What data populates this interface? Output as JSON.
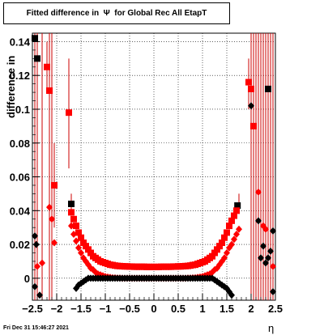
{
  "title": "Fitted difference in  Ψ  for Global Rec All EtapT",
  "footer": "Fri Dec 31 15:46:27 2021",
  "chart_data": {
    "type": "scatter",
    "title": "Fitted difference in  Ψ  for Global Rec All EtapT",
    "xlabel": "η",
    "ylabel": "difference in",
    "xlim": [
      -2.5,
      2.5
    ],
    "ylim": [
      -0.013,
      0.145
    ],
    "grid": true,
    "x_ticks": [
      -2.5,
      -2,
      -1.5,
      -1,
      -0.5,
      0,
      0.5,
      1,
      1.5,
      2,
      2.5
    ],
    "x_tick_labels": [
      "−2.5",
      "−2",
      "−1.5",
      "−1",
      "−0.5",
      "0",
      "0.5",
      "1",
      "1.5",
      "2",
      "2.5"
    ],
    "y_ticks": [
      0,
      0.02,
      0.04,
      0.06,
      0.08,
      0.1,
      0.12,
      0.14
    ],
    "y_tick_labels": [
      "0",
      "0.02",
      "0.04",
      "0.06",
      "0.08",
      "0.1",
      "0.12",
      "0.14"
    ],
    "colors": {
      "red": "#ff0000",
      "black": "#000000",
      "error_bar": "#cc0000"
    },
    "series": [
      {
        "marker": "square",
        "color": "#000000",
        "points": [
          [
            -2.45,
            0.142
          ],
          [
            -2.4,
            0.13
          ],
          [
            -1.7,
            0.044
          ],
          [
            1.72,
            0.043
          ],
          [
            2.35,
            0.112
          ]
        ]
      },
      {
        "marker": "square",
        "color": "#ff0000",
        "points": [
          [
            -2.2,
            0.125
          ],
          [
            -2.15,
            0.111
          ],
          [
            -2.05,
            0.055
          ],
          [
            -1.75,
            0.098
          ],
          [
            -1.7,
            0.039
          ],
          [
            -1.65,
            0.035
          ],
          [
            -1.6,
            0.031
          ],
          [
            -1.55,
            0.027
          ],
          [
            -1.5,
            0.024
          ],
          [
            -1.45,
            0.021
          ],
          [
            -1.4,
            0.019
          ],
          [
            -1.35,
            0.017
          ],
          [
            -1.3,
            0.015
          ],
          [
            -1.25,
            0.013
          ],
          [
            -1.2,
            0.012
          ],
          [
            -1.15,
            0.011
          ],
          [
            -1.1,
            0.01
          ],
          [
            -1.05,
            0.0095
          ],
          [
            -1.0,
            0.009
          ],
          [
            -0.95,
            0.0085
          ],
          [
            -0.9,
            0.008
          ],
          [
            -0.85,
            0.0078
          ],
          [
            -0.8,
            0.0075
          ],
          [
            -0.75,
            0.0073
          ],
          [
            -0.7,
            0.0072
          ],
          [
            -0.65,
            0.0071
          ],
          [
            -0.6,
            0.007
          ],
          [
            -0.55,
            0.007
          ],
          [
            -0.5,
            0.0069
          ],
          [
            -0.45,
            0.0069
          ],
          [
            -0.4,
            0.0068
          ],
          [
            -0.35,
            0.0068
          ],
          [
            -0.3,
            0.0068
          ],
          [
            -0.25,
            0.0068
          ],
          [
            -0.2,
            0.0068
          ],
          [
            -0.15,
            0.0067
          ],
          [
            -0.1,
            0.0067
          ],
          [
            -0.05,
            0.0067
          ],
          [
            0.0,
            0.0067
          ],
          [
            0.05,
            0.0067
          ],
          [
            0.1,
            0.0067
          ],
          [
            0.15,
            0.0068
          ],
          [
            0.2,
            0.0068
          ],
          [
            0.25,
            0.0068
          ],
          [
            0.3,
            0.0068
          ],
          [
            0.35,
            0.0068
          ],
          [
            0.4,
            0.0069
          ],
          [
            0.45,
            0.0069
          ],
          [
            0.5,
            0.007
          ],
          [
            0.55,
            0.007
          ],
          [
            0.6,
            0.0071
          ],
          [
            0.65,
            0.0072
          ],
          [
            0.7,
            0.0073
          ],
          [
            0.75,
            0.0075
          ],
          [
            0.8,
            0.0078
          ],
          [
            0.85,
            0.008
          ],
          [
            0.9,
            0.0085
          ],
          [
            0.95,
            0.009
          ],
          [
            1.0,
            0.0095
          ],
          [
            1.05,
            0.01
          ],
          [
            1.1,
            0.011
          ],
          [
            1.15,
            0.012
          ],
          [
            1.2,
            0.013
          ],
          [
            1.25,
            0.015
          ],
          [
            1.3,
            0.017
          ],
          [
            1.35,
            0.019
          ],
          [
            1.4,
            0.021
          ],
          [
            1.45,
            0.024
          ],
          [
            1.5,
            0.027
          ],
          [
            1.55,
            0.031
          ],
          [
            1.6,
            0.034
          ],
          [
            1.65,
            0.037
          ],
          [
            1.7,
            0.04
          ],
          [
            1.95,
            0.116
          ],
          [
            2.0,
            0.112
          ],
          [
            2.05,
            0.09
          ]
        ]
      },
      {
        "marker": "diamond",
        "color": "#ff0000",
        "points": [
          [
            -2.4,
            0.007
          ],
          [
            -2.3,
            0.009
          ],
          [
            -2.15,
            0.042
          ],
          [
            -2.1,
            0.035
          ],
          [
            -2.05,
            0.021
          ],
          [
            -1.7,
            0.031
          ],
          [
            -1.65,
            0.026
          ],
          [
            -1.6,
            0.022
          ],
          [
            -1.55,
            0.018
          ],
          [
            -1.5,
            0.015
          ],
          [
            -1.45,
            0.012
          ],
          [
            -1.4,
            0.01
          ],
          [
            -1.35,
            0.008
          ],
          [
            -1.3,
            0.006
          ],
          [
            -1.25,
            0.005
          ],
          [
            -1.2,
            0.0035
          ],
          [
            -1.15,
            0.0025
          ],
          [
            -1.1,
            0.002
          ],
          [
            -1.05,
            0.0015
          ],
          [
            -1.0,
            0.001
          ],
          [
            -0.95,
            0.0007
          ],
          [
            -0.9,
            0.0005
          ],
          [
            -0.85,
            0.0003
          ],
          [
            -0.8,
            0.0002
          ],
          [
            -0.75,
            0.0001
          ],
          [
            -0.7,
            0.0001
          ],
          [
            -0.65,
            0.0
          ],
          [
            -0.6,
            0.0
          ],
          [
            -0.55,
            0.0
          ],
          [
            -0.5,
            0.0
          ],
          [
            -0.45,
            0.0
          ],
          [
            -0.4,
            0.0
          ],
          [
            -0.35,
            0.0
          ],
          [
            -0.3,
            0.0
          ],
          [
            -0.25,
            0.0
          ],
          [
            -0.2,
            0.0
          ],
          [
            -0.15,
            0.0
          ],
          [
            -0.1,
            0.0
          ],
          [
            -0.05,
            0.0
          ],
          [
            0.0,
            0.0
          ],
          [
            0.05,
            0.0
          ],
          [
            0.1,
            0.0
          ],
          [
            0.15,
            0.0
          ],
          [
            0.2,
            0.0
          ],
          [
            0.25,
            0.0
          ],
          [
            0.3,
            0.0
          ],
          [
            0.35,
            0.0
          ],
          [
            0.4,
            0.0
          ],
          [
            0.45,
            0.0
          ],
          [
            0.5,
            0.0
          ],
          [
            0.55,
            0.0
          ],
          [
            0.6,
            0.0
          ],
          [
            0.65,
            0.0
          ],
          [
            0.7,
            0.0001
          ],
          [
            0.75,
            0.0001
          ],
          [
            0.8,
            0.0002
          ],
          [
            0.85,
            0.0003
          ],
          [
            0.9,
            0.0005
          ],
          [
            0.95,
            0.0007
          ],
          [
            1.0,
            0.001
          ],
          [
            1.05,
            0.0015
          ],
          [
            1.1,
            0.002
          ],
          [
            1.15,
            0.0025
          ],
          [
            1.2,
            0.0035
          ],
          [
            1.25,
            0.005
          ],
          [
            1.3,
            0.006
          ],
          [
            1.35,
            0.008
          ],
          [
            1.4,
            0.01
          ],
          [
            1.45,
            0.012
          ],
          [
            1.5,
            0.015
          ],
          [
            1.55,
            0.018
          ],
          [
            1.6,
            0.02
          ],
          [
            1.65,
            0.023
          ],
          [
            1.7,
            0.026
          ],
          [
            1.75,
            0.029
          ],
          [
            2.15,
            0.051
          ],
          [
            2.25,
            0.031
          ],
          [
            2.3,
            0.029
          ],
          [
            2.45,
            0.007
          ]
        ]
      },
      {
        "marker": "diamond",
        "color": "#000000",
        "points": [
          [
            -2.45,
            0.025
          ],
          [
            -2.42,
            0.02
          ],
          [
            -2.45,
            -0.005
          ],
          [
            -2.35,
            -0.01
          ],
          [
            -1.6,
            -0.006
          ],
          [
            -1.55,
            -0.004
          ],
          [
            -1.5,
            -0.003
          ],
          [
            -1.45,
            -0.002
          ],
          [
            -1.4,
            -0.001
          ],
          [
            -1.35,
            0.0
          ],
          [
            -1.3,
            0.0
          ],
          [
            -1.25,
            0.0
          ],
          [
            -1.2,
            0.0
          ],
          [
            -1.15,
            0.0
          ],
          [
            -1.1,
            0.0
          ],
          [
            -1.05,
            0.0
          ],
          [
            -1.0,
            0.0
          ],
          [
            -0.95,
            0.0
          ],
          [
            -0.9,
            0.0
          ],
          [
            -0.85,
            0.0
          ],
          [
            -0.8,
            0.0
          ],
          [
            -0.75,
            0.0
          ],
          [
            -0.7,
            0.0
          ],
          [
            -0.65,
            0.0
          ],
          [
            -0.6,
            0.0
          ],
          [
            -0.55,
            0.0
          ],
          [
            -0.5,
            0.0
          ],
          [
            -0.45,
            0.0
          ],
          [
            -0.4,
            0.0
          ],
          [
            -0.35,
            0.0
          ],
          [
            -0.3,
            0.0
          ],
          [
            -0.25,
            0.0
          ],
          [
            -0.2,
            0.0
          ],
          [
            -0.15,
            0.0
          ],
          [
            -0.1,
            0.0
          ],
          [
            -0.05,
            0.0
          ],
          [
            0.0,
            0.0
          ],
          [
            0.05,
            0.0
          ],
          [
            0.1,
            0.0
          ],
          [
            0.15,
            0.0
          ],
          [
            0.2,
            0.0
          ],
          [
            0.25,
            0.0
          ],
          [
            0.3,
            0.0
          ],
          [
            0.35,
            0.0
          ],
          [
            0.4,
            0.0
          ],
          [
            0.45,
            0.0
          ],
          [
            0.5,
            0.0
          ],
          [
            0.55,
            0.0
          ],
          [
            0.6,
            0.0
          ],
          [
            0.65,
            0.0
          ],
          [
            0.7,
            0.0
          ],
          [
            0.75,
            0.0
          ],
          [
            0.8,
            0.0
          ],
          [
            0.85,
            0.0
          ],
          [
            0.9,
            0.0
          ],
          [
            0.95,
            0.0
          ],
          [
            1.0,
            0.0
          ],
          [
            1.05,
            0.0
          ],
          [
            1.1,
            0.0
          ],
          [
            1.15,
            0.0
          ],
          [
            1.2,
            0.0
          ],
          [
            1.25,
            -0.001
          ],
          [
            1.3,
            -0.002
          ],
          [
            1.35,
            -0.003
          ],
          [
            1.4,
            -0.004
          ],
          [
            1.45,
            -0.005
          ],
          [
            1.5,
            -0.006
          ],
          [
            1.55,
            -0.008
          ],
          [
            1.6,
            -0.01
          ],
          [
            2.0,
            0.102
          ],
          [
            2.15,
            0.034
          ],
          [
            2.2,
            0.012
          ],
          [
            2.25,
            0.019
          ],
          [
            2.3,
            0.009
          ],
          [
            2.35,
            0.012
          ],
          [
            2.4,
            0.016
          ],
          [
            2.45,
            0.028
          ],
          [
            2.45,
            -0.008
          ]
        ]
      }
    ],
    "error_bars": [
      [
        -2.45,
        -0.013,
        0.145
      ],
      [
        -2.4,
        -0.013,
        0.145
      ],
      [
        -2.3,
        -0.013,
        0.145
      ],
      [
        -2.2,
        0.11,
        0.14
      ],
      [
        -2.15,
        -0.013,
        0.145
      ],
      [
        -2.1,
        -0.013,
        0.145
      ],
      [
        -2.05,
        0.03,
        0.08
      ],
      [
        -1.75,
        0.065,
        0.13
      ],
      [
        -1.7,
        0.038,
        0.05
      ],
      [
        1.75,
        0.038,
        0.05
      ],
      [
        1.95,
        0.1,
        0.13
      ],
      [
        2.0,
        -0.013,
        0.145
      ],
      [
        2.05,
        -0.013,
        0.145
      ],
      [
        2.1,
        -0.013,
        0.145
      ],
      [
        2.15,
        -0.013,
        0.145
      ],
      [
        2.2,
        -0.013,
        0.145
      ],
      [
        2.25,
        -0.013,
        0.145
      ],
      [
        2.3,
        -0.013,
        0.145
      ],
      [
        2.35,
        -0.013,
        0.145
      ],
      [
        2.4,
        -0.013,
        0.145
      ],
      [
        2.45,
        -0.013,
        0.145
      ]
    ]
  }
}
